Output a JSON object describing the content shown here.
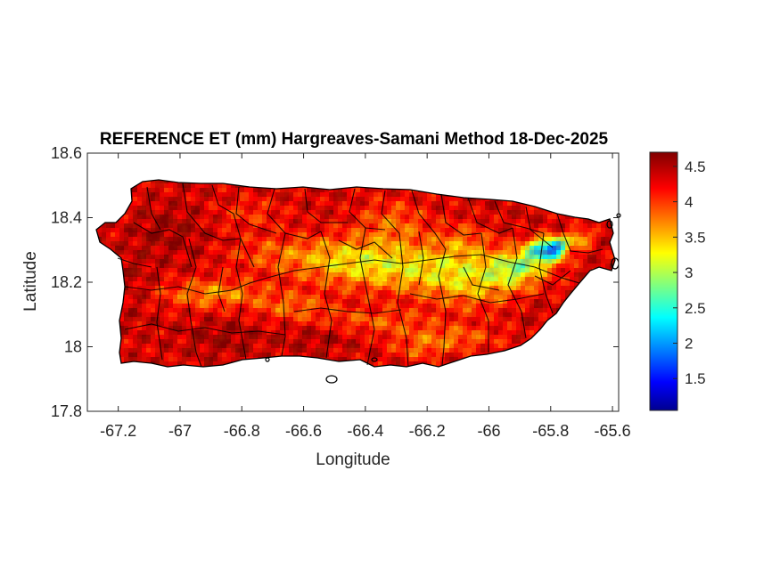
{
  "figure": {
    "title": "REFERENCE ET (mm) Hargreaves-Samani Method  18-Dec-2025",
    "xlabel": "Longitude",
    "ylabel": "Latitude"
  },
  "chart_data": {
    "type": "heatmap",
    "title": "REFERENCE ET (mm) Hargreaves-Samani Method  18-Dec-2025",
    "xlabel": "Longitude",
    "ylabel": "Latitude",
    "xlim": [
      -67.3,
      -65.58
    ],
    "ylim": [
      17.8,
      18.6
    ],
    "x_ticks": [
      -67.2,
      -67,
      -66.8,
      -66.6,
      -66.4,
      -66.2,
      -66,
      -65.8,
      -65.6
    ],
    "x_tick_labels": [
      "-67.2",
      "-67",
      "-66.8",
      "-66.6",
      "-66.4",
      "-66.2",
      "-66",
      "-65.8",
      "-65.6"
    ],
    "y_ticks": [
      17.8,
      18,
      18.2,
      18.4,
      18.6
    ],
    "y_tick_labels": [
      "17.8",
      "18",
      "18.2",
      "18.4",
      "18.6"
    ],
    "colorbar": {
      "colormap": "jet",
      "range": [
        1.05,
        4.7
      ],
      "ticks": [
        1.5,
        2,
        2.5,
        3,
        3.5,
        4,
        4.5
      ],
      "tick_labels": [
        "1.5",
        "2",
        "2.5",
        "3",
        "3.5",
        "4",
        "4.5"
      ]
    },
    "grid": false,
    "box": true
  },
  "colors": {
    "background": "#ffffff",
    "axis": "#262626",
    "boundary": "#000000",
    "jet_low": "#00008f",
    "jet_high": "#800000"
  }
}
